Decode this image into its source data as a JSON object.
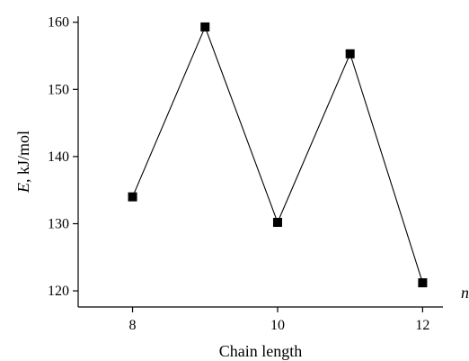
{
  "chart_data": {
    "type": "line",
    "x": [
      8,
      9,
      10,
      11,
      12
    ],
    "series": [
      {
        "values": [
          134,
          159.3,
          130.2,
          155.3,
          121.2
        ]
      }
    ],
    "xlabel": "Chain length",
    "ylabel_italic": "E",
    "ylabel_rest": ", kJ/mol",
    "x_axis_arrow_label": "n",
    "xlim": [
      7.25,
      12.28
    ],
    "ylim": [
      117.6,
      160.9
    ],
    "x_ticks": [
      8,
      10,
      12
    ],
    "x_tick_labels": [
      "8",
      "10",
      "12"
    ],
    "y_ticks": [
      120,
      130,
      140,
      150,
      160
    ],
    "y_tick_labels": [
      "120",
      "130",
      "140",
      "150",
      "160"
    ],
    "marker": "square",
    "grid": false,
    "legend": "none",
    "color": "#000000"
  }
}
